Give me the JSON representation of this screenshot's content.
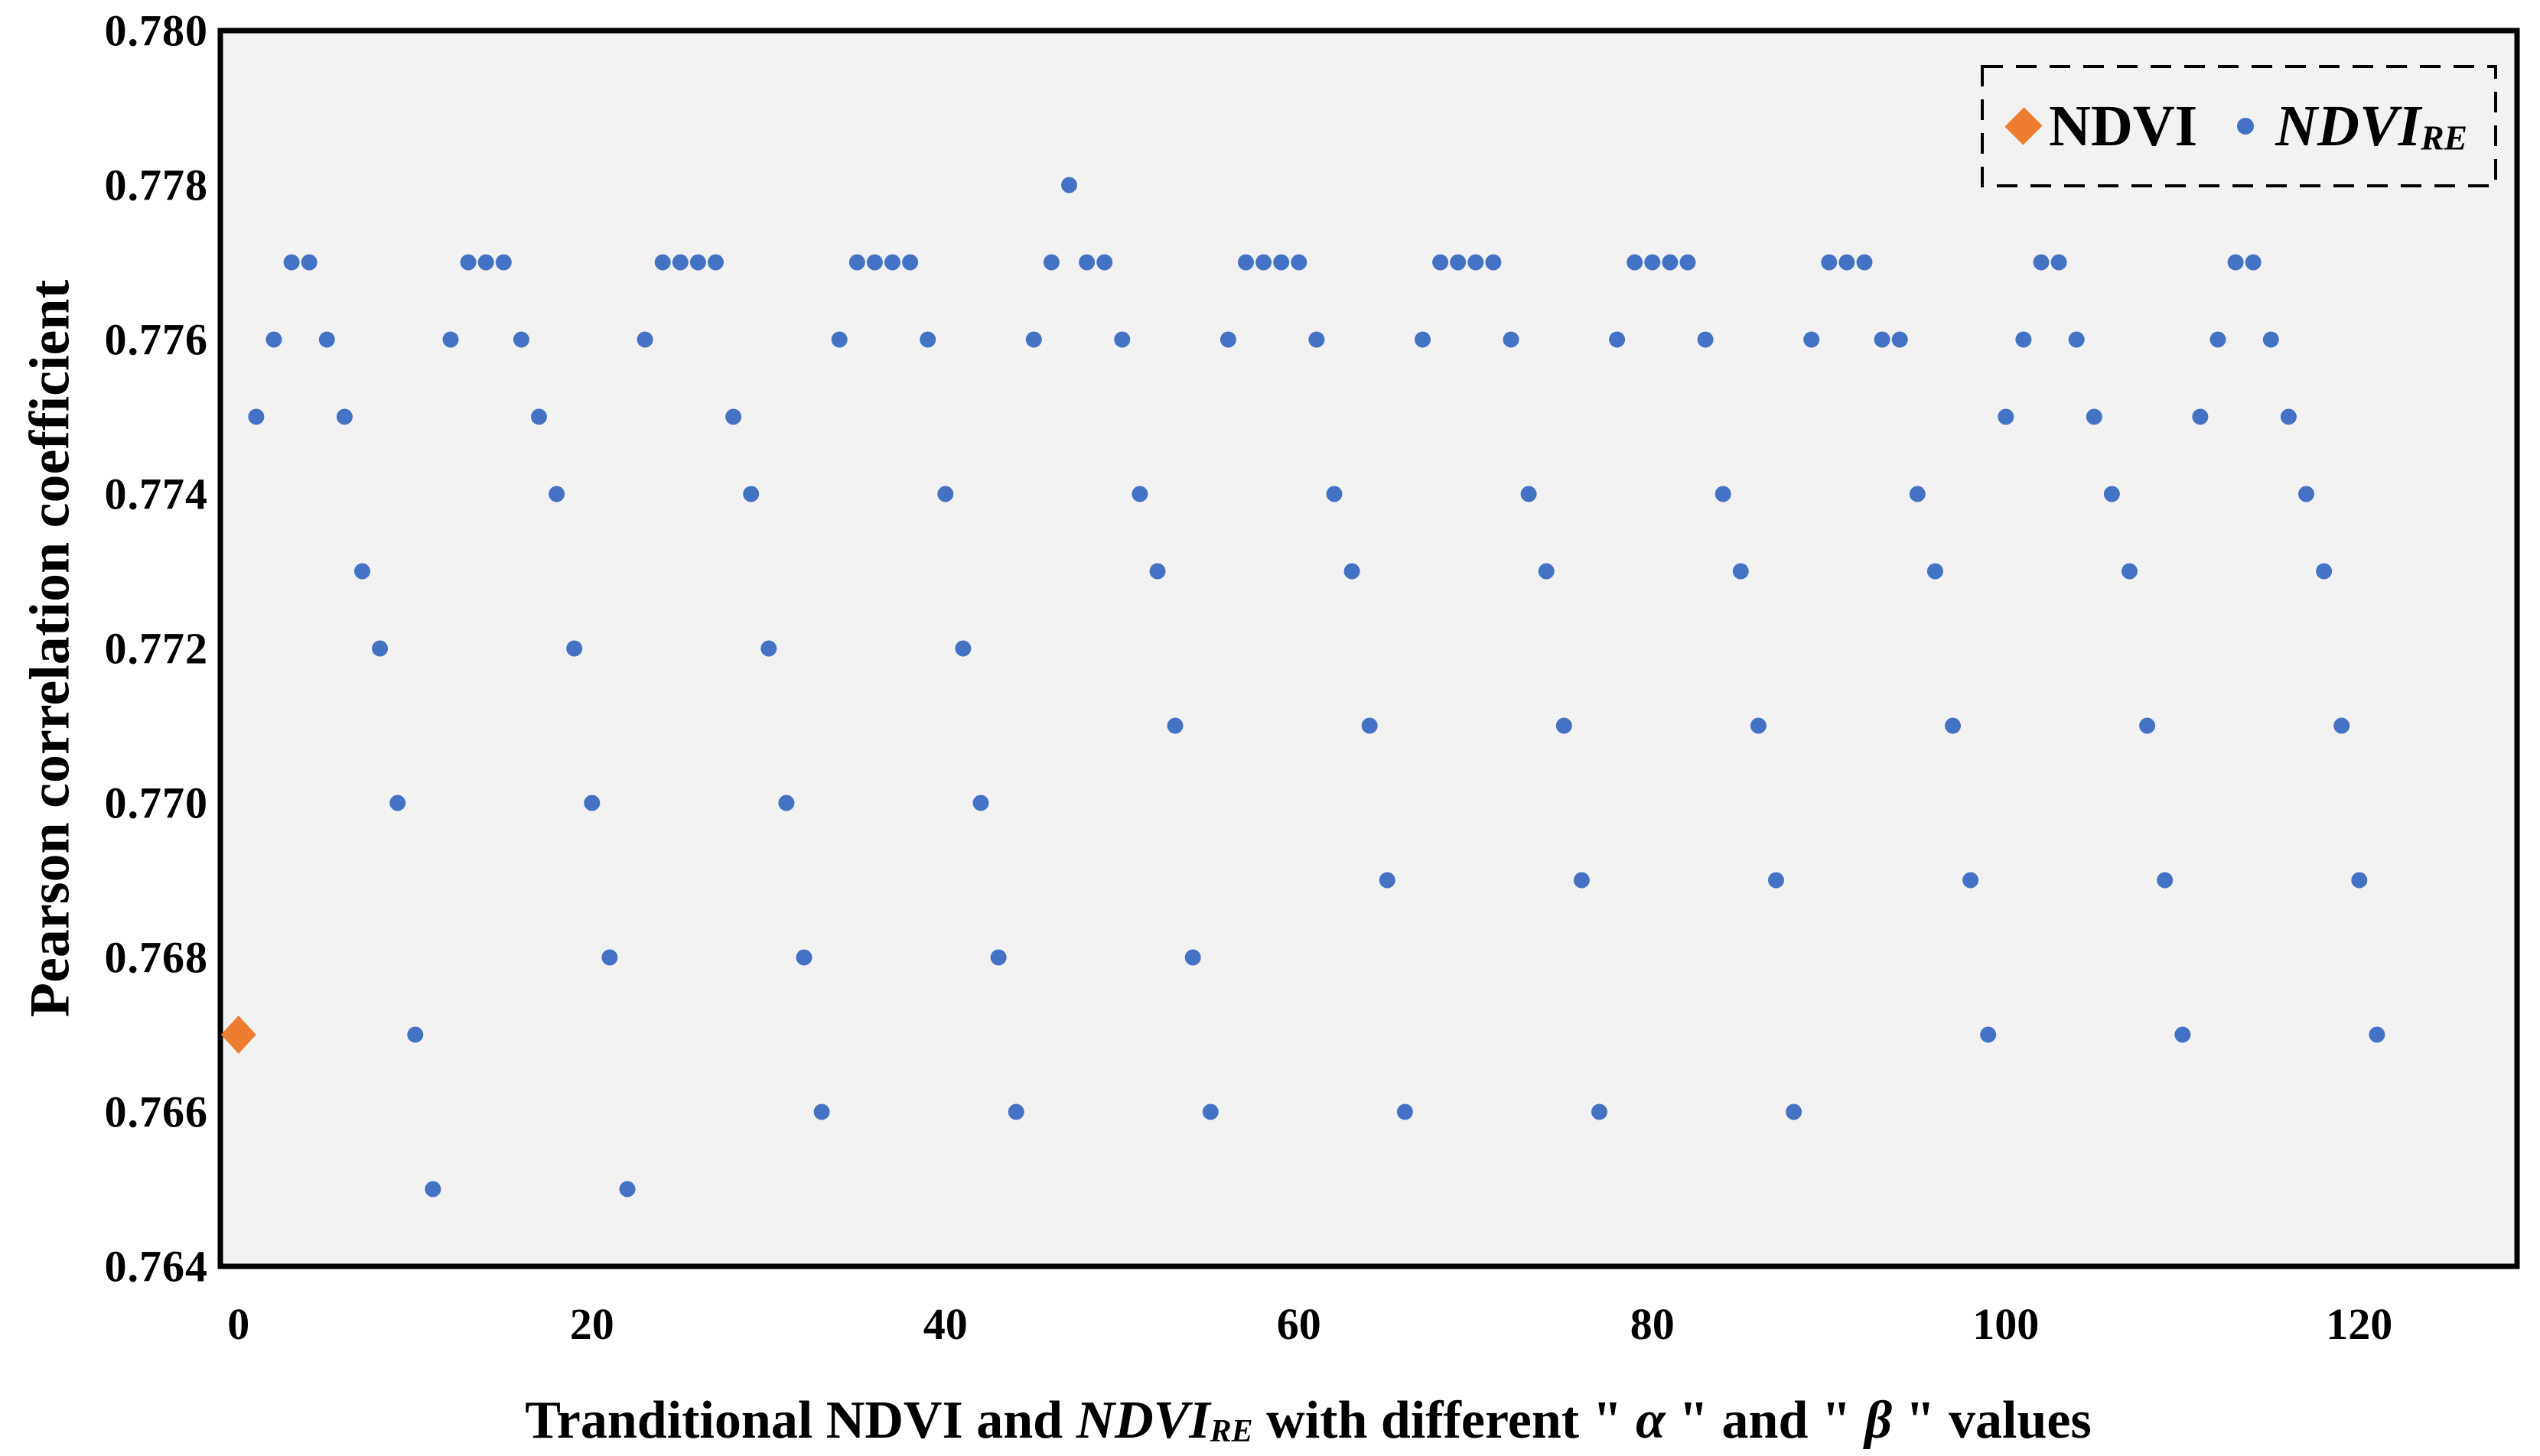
{
  "chart_data": {
    "type": "scatter",
    "title": "",
    "ylabel": "Pearson correlation coefficient",
    "xlabel_segments": [
      {
        "t": "Tranditional NDVI and ",
        "style": "plain"
      },
      {
        "t": "NDVI",
        "style": "italic"
      },
      {
        "t": "RE",
        "style": "italic-sub"
      },
      {
        "t": " with different \" ",
        "style": "plain"
      },
      {
        "t": "α",
        "style": "italic"
      },
      {
        "t": " \" and \" ",
        "style": "plain"
      },
      {
        "t": "β",
        "style": "italic"
      },
      {
        "t": " \" values",
        "style": "plain"
      }
    ],
    "x_ticks": [
      0,
      20,
      40,
      60,
      80,
      100,
      120
    ],
    "y_ticks": [
      "0.780",
      "0.778",
      "0.776",
      "0.774",
      "0.772",
      "0.770",
      "0.768",
      "0.766",
      "0.764"
    ],
    "xlim": [
      -1,
      129
    ],
    "ylim": [
      0.764,
      0.78
    ],
    "grid": false,
    "legend_position": "top-right-inside",
    "legend": {
      "ndvi": "NDVI",
      "ndvire_main": "NDVI",
      "ndvire_sub": "RE"
    },
    "series": [
      {
        "name": "NDVI",
        "marker": "diamond",
        "color": "#ED7D31",
        "points": [
          [
            0,
            0.767
          ]
        ]
      },
      {
        "name": "NDVIRE",
        "marker": "circle",
        "color": "#4472C4",
        "x_start": 1,
        "x_step": 1,
        "y_values": [
          0.775,
          0.776,
          0.777,
          0.777,
          0.776,
          0.775,
          0.773,
          0.772,
          0.77,
          0.767,
          0.765,
          0.776,
          0.777,
          0.777,
          0.777,
          0.776,
          0.775,
          0.774,
          0.772,
          0.77,
          0.768,
          0.765,
          0.776,
          0.777,
          0.777,
          0.777,
          0.777,
          0.775,
          0.774,
          0.772,
          0.77,
          0.768,
          0.766,
          0.776,
          0.777,
          0.777,
          0.777,
          0.777,
          0.776,
          0.774,
          0.772,
          0.77,
          0.768,
          0.766,
          0.776,
          0.777,
          0.778,
          0.777,
          0.777,
          0.776,
          0.774,
          0.773,
          0.771,
          0.768,
          0.766,
          0.776,
          0.777,
          0.777,
          0.777,
          0.777,
          0.776,
          0.774,
          0.773,
          0.771,
          0.769,
          0.766,
          0.776,
          0.777,
          0.777,
          0.777,
          0.777,
          0.776,
          0.774,
          0.773,
          0.771,
          0.769,
          0.766,
          0.776,
          0.777,
          0.777,
          0.777,
          0.777,
          0.776,
          0.774,
          0.773,
          0.771,
          0.769,
          0.766,
          0.776,
          0.777,
          0.777,
          0.777,
          0.776,
          0.776,
          0.774,
          0.773,
          0.771,
          0.769,
          0.767,
          0.775,
          0.776,
          0.777,
          0.777,
          0.776,
          0.775,
          0.774,
          0.773,
          0.771,
          0.769,
          0.767,
          0.775,
          0.776,
          0.777,
          0.777,
          0.776,
          0.775,
          0.774,
          0.773,
          0.771,
          0.769,
          0.767
        ]
      }
    ]
  },
  "colors": {
    "ndvi": "#ED7D31",
    "ndvire": "#4472C4",
    "plot_bg": "#F2F2F2",
    "plot_border": "#000000",
    "page_bg": "#FFFFFF",
    "text": "#000000",
    "legend_border": "#000000"
  }
}
